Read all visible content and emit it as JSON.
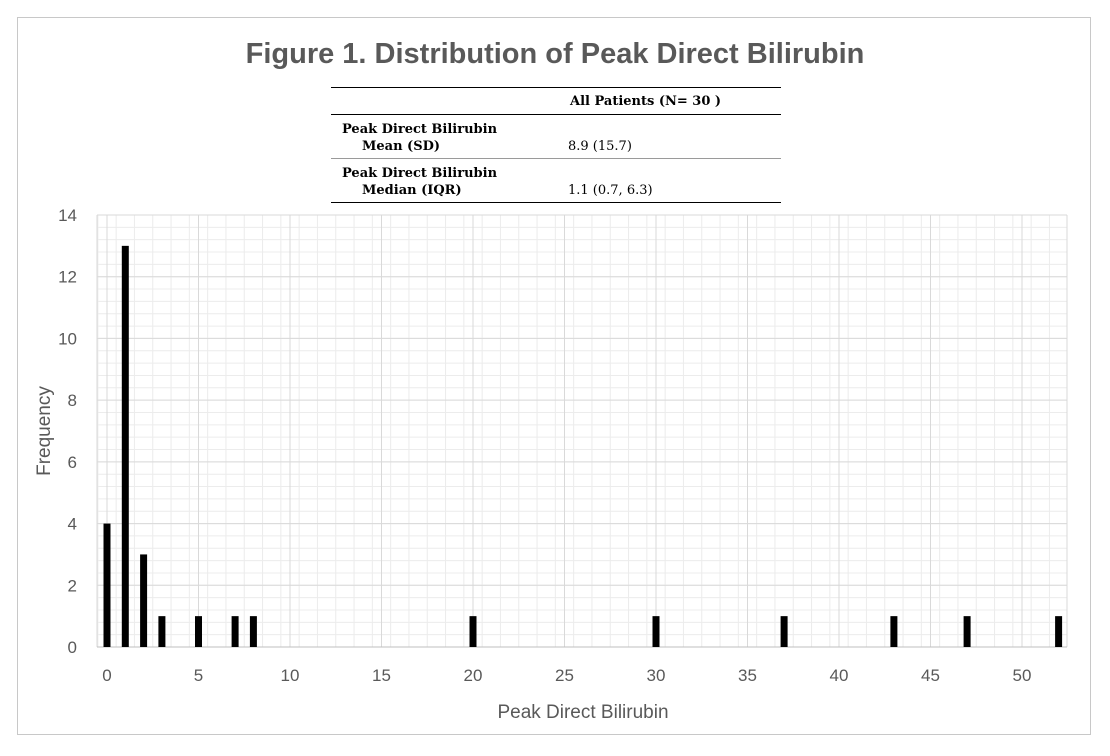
{
  "chart_data": {
    "type": "bar",
    "title": "Figure 1. Distribution of Peak Direct Bilirubin",
    "xlabel": "Peak Direct Bilirubin",
    "ylabel": "Frequency",
    "xlim": [
      0,
      52
    ],
    "ylim": [
      0,
      14
    ],
    "xticks": [
      0,
      5,
      10,
      15,
      20,
      25,
      30,
      35,
      40,
      45,
      50
    ],
    "yticks": [
      0,
      2,
      4,
      6,
      8,
      10,
      12,
      14
    ],
    "grid": true,
    "colors": {
      "bars": "#000000",
      "grid": "#d9d9d9",
      "text": "#595959"
    },
    "x": [
      0,
      1,
      2,
      3,
      5,
      7,
      8,
      20,
      30,
      37,
      43,
      47,
      52
    ],
    "values": [
      4,
      13,
      3,
      1,
      1,
      1,
      1,
      1,
      1,
      1,
      1,
      1,
      1
    ]
  },
  "summary_table": {
    "header": "All Patients (N= 30 )",
    "rows": [
      {
        "label_line1": "Peak Direct Bilirubin",
        "label_line2": "Mean (SD)",
        "value": "8.9 (15.7)"
      },
      {
        "label_line1": "Peak Direct Bilirubin",
        "label_line2": "Median (IQR)",
        "value": "1.1 (0.7, 6.3)"
      }
    ]
  }
}
